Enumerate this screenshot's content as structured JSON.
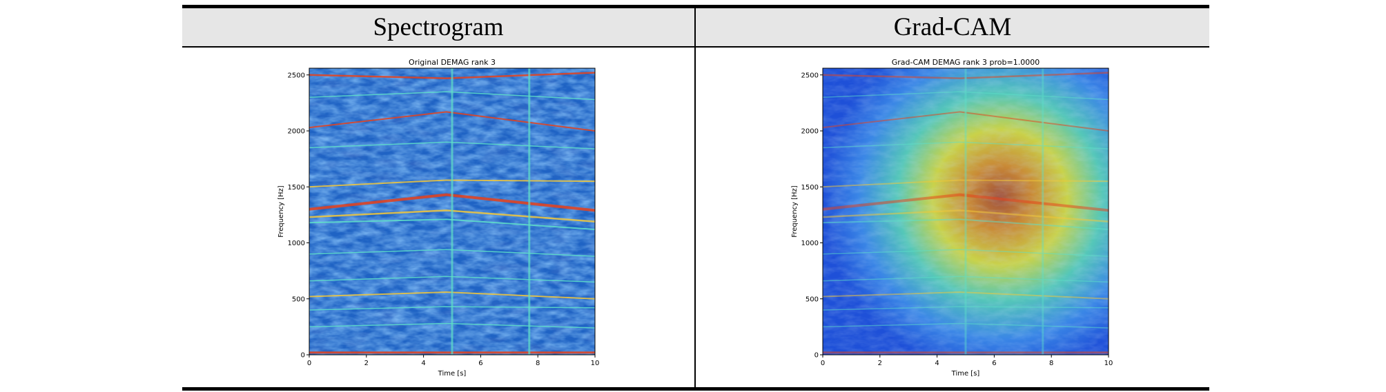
{
  "table": {
    "col_headers": [
      "Spectrogram",
      "Grad-CAM"
    ]
  },
  "colors": {
    "header_bg": "#e6e6e6",
    "rule": "#000000",
    "spec_background": "#1f63c4",
    "spec_line_hot": "#e8411a",
    "spec_line_warm": "#f3c83a",
    "spec_line_cool": "#5fe0c8",
    "gradcam_cold": "#1e50d8",
    "gradcam_hot": "#a0503c"
  },
  "chart_data": [
    {
      "type": "heatmap",
      "title": "Original DEMAG rank 3",
      "xlabel": "Time [s]",
      "ylabel": "Frequency [Hz]",
      "xlim": [
        0,
        10
      ],
      "ylim": [
        0,
        2560
      ],
      "xticks": [
        0,
        2,
        4,
        6,
        8,
        10
      ],
      "yticks": [
        0,
        500,
        1000,
        1500,
        2000,
        2500
      ],
      "xtick_labels": [
        "0",
        "2",
        "4",
        "6",
        "8",
        "10"
      ],
      "ytick_labels": [
        "0",
        "500",
        "1000",
        "1500",
        "2000",
        "2500"
      ],
      "colormap": "jet",
      "grid": false
    },
    {
      "type": "heatmap",
      "title": "Grad-CAM DEMAG rank 3 prob=1.0000",
      "xlabel": "Time [s]",
      "ylabel": "Frequency [Hz]",
      "xlim": [
        0,
        10
      ],
      "ylim": [
        0,
        2560
      ],
      "xticks": [
        0,
        2,
        4,
        6,
        8,
        10
      ],
      "yticks": [
        0,
        500,
        1000,
        1500,
        2000,
        2500
      ],
      "xtick_labels": [
        "0",
        "2",
        "4",
        "6",
        "8",
        "10"
      ],
      "ytick_labels": [
        "0",
        "500",
        "1000",
        "1500",
        "2000",
        "2500"
      ],
      "colormap": "jet",
      "grid": false
    }
  ]
}
